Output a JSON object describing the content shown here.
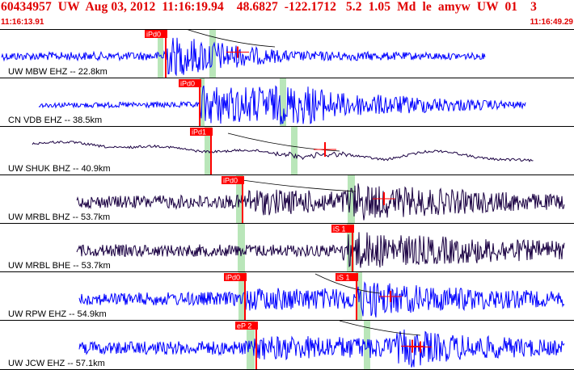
{
  "header": {
    "event_id": "60434957",
    "network": "UW",
    "date": "Aug 03, 2012",
    "time": "11:16:19.94",
    "latitude": "48.6827",
    "longitude": "-122.1712",
    "depth": "5.2",
    "magnitude": "1.05",
    "mag_type": "Md",
    "event_type": "le",
    "author": "amyw",
    "source": "UW",
    "version": "01",
    "extra": "3"
  },
  "time_start": "11:16:13.91",
  "time_end": "11:16:49.29",
  "colors": {
    "header_text": "#e00000",
    "trace_blue": "#0000ff",
    "trace_dark": "#1a0042",
    "pick_marker": "#ff0000",
    "pick_label_bg": "#ff0000",
    "green_band": "#b9e6b9",
    "divider": "#000000"
  },
  "panels": [
    {
      "station": "UW MBW EHZ -- 22.8km",
      "pick_labels": [
        "iPd0"
      ],
      "trace_color": "blue"
    },
    {
      "station": "CN VDB EHZ -- 38.5km",
      "pick_labels": [
        "iPd0"
      ],
      "trace_color": "blue"
    },
    {
      "station": "UW SHUK BHZ -- 40.9km",
      "pick_labels": [
        "iPd1"
      ],
      "trace_color": "dark"
    },
    {
      "station": "UW MRBL BHZ -- 53.7km",
      "pick_labels": [
        "iPd0"
      ],
      "trace_color": "dark"
    },
    {
      "station": "UW MRBL BHE -- 53.7km",
      "pick_labels": [
        "iS 1"
      ],
      "trace_color": "dark"
    },
    {
      "station": "UW RPW EHZ -- 54.9km",
      "pick_labels": [
        "iPd0",
        "iS 1"
      ],
      "trace_color": "blue"
    },
    {
      "station": "UW JCW EHZ -- 57.1km",
      "pick_labels": [
        "eP 2"
      ],
      "trace_color": "blue"
    }
  ]
}
